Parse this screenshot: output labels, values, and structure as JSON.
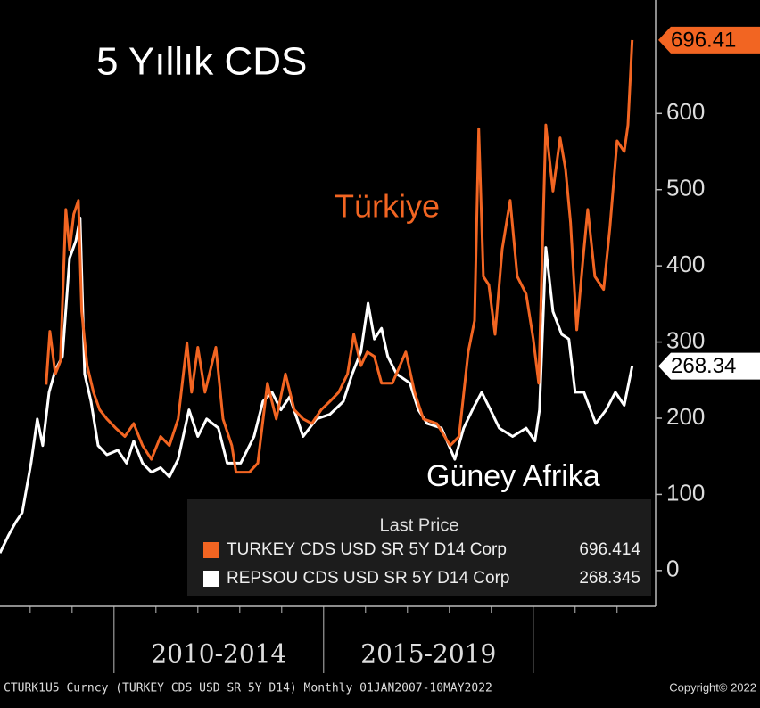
{
  "chart_data": {
    "type": "line",
    "title": "5 Yıllık CDS",
    "annotations": [
      "Türkiye",
      "Güney Afrika"
    ],
    "legend_title": "Last Price",
    "footer": "CTURK1U5 Curncy (TURKEY CDS USD SR 5Y D14) Monthly 01JAN2007-10MAY2022",
    "copyright": "Copyright© 2022",
    "xlim": [
      2007.28,
      2022.92
    ],
    "x_period_labels": [
      {
        "value": 2012.5,
        "label": "2010-2014"
      },
      {
        "value": 2017.5,
        "label": "2015-2019"
      }
    ],
    "x_dividers": [
      2010,
      2015,
      2020
    ],
    "x_minor_ticks": [
      2008,
      2009,
      2011,
      2012,
      2013,
      2014,
      2016,
      2017,
      2018,
      2019,
      2021,
      2022
    ],
    "ylim": [
      -47,
      749
    ],
    "yticks": [
      0,
      100,
      200,
      300,
      400,
      500,
      600
    ],
    "series": [
      {
        "name": "TURKEY CDS USD SR 5Y D14 Corp",
        "color": "#f26522",
        "last_value_label": "696.41",
        "x": [
          2008.38,
          2008.47,
          2008.6,
          2008.72,
          2008.85,
          2008.94,
          2009.04,
          2009.15,
          2009.23,
          2009.36,
          2009.51,
          2009.66,
          2009.83,
          2010.04,
          2010.26,
          2010.47,
          2010.68,
          2010.89,
          2011.11,
          2011.32,
          2011.53,
          2011.74,
          2011.85,
          2012.0,
          2012.17,
          2012.43,
          2012.6,
          2012.81,
          2012.91,
          2013.23,
          2013.43,
          2013.66,
          2013.87,
          2014.09,
          2014.3,
          2014.51,
          2014.72,
          2014.94,
          2015.15,
          2015.36,
          2015.57,
          2015.72,
          2015.89,
          2016.04,
          2016.21,
          2016.38,
          2016.64,
          2016.96,
          2017.17,
          2017.38,
          2017.7,
          2018.02,
          2018.23,
          2018.45,
          2018.6,
          2018.7,
          2018.81,
          2018.94,
          2019.09,
          2019.26,
          2019.45,
          2019.62,
          2019.83,
          2020.0,
          2020.13,
          2020.3,
          2020.47,
          2020.64,
          2020.77,
          2020.89,
          2021.04,
          2021.19,
          2021.3,
          2021.47,
          2021.68,
          2021.83,
          2022.0,
          2022.17,
          2022.26,
          2022.36
        ],
        "values": [
          244,
          314,
          258,
          275,
          474,
          421,
          468,
          486,
          340,
          269,
          234,
          211,
          199,
          187,
          176,
          193,
          164,
          146,
          176,
          164,
          199,
          299,
          234,
          293,
          234,
          293,
          199,
          164,
          129,
          129,
          141,
          246,
          199,
          258,
          211,
          199,
          193,
          211,
          222,
          234,
          258,
          310,
          269,
          287,
          281,
          246,
          246,
          287,
          234,
          199,
          193,
          164,
          176,
          287,
          328,
          580,
          386,
          375,
          310,
          422,
          486,
          386,
          363,
          304,
          246,
          585,
          498,
          568,
          527,
          457,
          316,
          410,
          474,
          386,
          369,
          451,
          564,
          550,
          585,
          696.414
        ]
      },
      {
        "name": "REPSOU CDS USD SR 5Y D14 Corp",
        "color": "#ffffff",
        "last_value_label": "268.34",
        "x": [
          2007.28,
          2007.49,
          2007.66,
          2007.81,
          2008.02,
          2008.17,
          2008.3,
          2008.45,
          2008.6,
          2008.77,
          2008.94,
          2009.09,
          2009.19,
          2009.3,
          2009.45,
          2009.62,
          2009.83,
          2010.09,
          2010.3,
          2010.47,
          2010.68,
          2010.89,
          2011.11,
          2011.32,
          2011.53,
          2011.79,
          2012.0,
          2012.21,
          2012.49,
          2012.7,
          2013.02,
          2013.34,
          2013.55,
          2013.77,
          2013.98,
          2014.19,
          2014.51,
          2014.83,
          2015.15,
          2015.47,
          2015.68,
          2015.89,
          2016.06,
          2016.21,
          2016.38,
          2016.53,
          2016.74,
          2017.06,
          2017.26,
          2017.47,
          2017.81,
          2018.13,
          2018.34,
          2018.55,
          2018.77,
          2018.98,
          2019.19,
          2019.51,
          2019.83,
          2020.04,
          2020.15,
          2020.3,
          2020.47,
          2020.68,
          2020.85,
          2021.0,
          2021.21,
          2021.49,
          2021.74,
          2021.96,
          2022.17,
          2022.36
        ],
        "values": [
          23,
          47,
          64,
          76,
          141,
          199,
          164,
          234,
          263,
          281,
          410,
          433,
          463,
          258,
          222,
          164,
          152,
          158,
          141,
          170,
          141,
          129,
          135,
          123,
          146,
          211,
          176,
          199,
          187,
          141,
          141,
          176,
          222,
          234,
          211,
          228,
          176,
          199,
          205,
          222,
          258,
          287,
          351,
          304,
          318,
          281,
          258,
          246,
          211,
          193,
          187,
          146,
          187,
          211,
          234,
          211,
          187,
          176,
          187,
          170,
          211,
          424,
          340,
          310,
          304,
          234,
          234,
          193,
          211,
          234,
          217,
          268.345
        ]
      }
    ]
  }
}
